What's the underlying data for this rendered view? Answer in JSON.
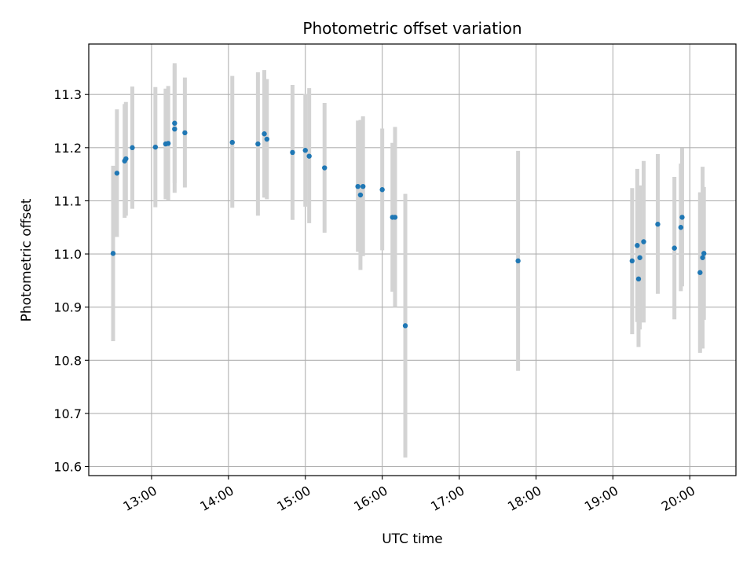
{
  "chart_data": {
    "type": "scatter",
    "title": "Photometric offset variation",
    "xlabel": "UTC time",
    "ylabel": "Photometric offset",
    "x_ticks": [
      "13:00",
      "14:00",
      "15:00",
      "16:00",
      "17:00",
      "18:00",
      "19:00",
      "20:00"
    ],
    "y_ticks": [
      "10.6",
      "10.7",
      "10.8",
      "10.9",
      "11.0",
      "11.1",
      "11.2",
      "11.3"
    ],
    "xlim": [
      "12:11",
      "20:36"
    ],
    "ylim": [
      10.583,
      11.395
    ],
    "grid": true,
    "colors": {
      "point": "#1f77b4",
      "errorbar": "#d3d3d3",
      "grid": "#b0b0b0"
    },
    "points": [
      {
        "x": "12:30",
        "y": 11.001,
        "low": 10.836,
        "high": 11.166
      },
      {
        "x": "12:33",
        "y": 11.152,
        "low": 11.032,
        "high": 11.272
      },
      {
        "x": "12:39",
        "y": 11.175,
        "low": 11.068,
        "high": 11.282
      },
      {
        "x": "12:40",
        "y": 11.179,
        "low": 11.072,
        "high": 11.286
      },
      {
        "x": "12:45",
        "y": 11.2,
        "low": 11.085,
        "high": 11.315
      },
      {
        "x": "13:03",
        "y": 11.201,
        "low": 11.088,
        "high": 11.314
      },
      {
        "x": "13:11",
        "y": 11.207,
        "low": 11.103,
        "high": 11.311
      },
      {
        "x": "13:13",
        "y": 11.208,
        "low": 11.1,
        "high": 11.316
      },
      {
        "x": "13:18",
        "y": 11.246,
        "low": 11.133,
        "high": 11.359
      },
      {
        "x": "13:18",
        "y": 11.235,
        "low": 11.115,
        "high": 11.355
      },
      {
        "x": "13:26",
        "y": 11.228,
        "low": 11.125,
        "high": 11.332
      },
      {
        "x": "14:03",
        "y": 11.21,
        "low": 11.087,
        "high": 11.335
      },
      {
        "x": "14:23",
        "y": 11.207,
        "low": 11.072,
        "high": 11.342
      },
      {
        "x": "14:28",
        "y": 11.226,
        "low": 11.106,
        "high": 11.346
      },
      {
        "x": "14:30",
        "y": 11.216,
        "low": 11.103,
        "high": 11.329
      },
      {
        "x": "14:50",
        "y": 11.191,
        "low": 11.064,
        "high": 11.318
      },
      {
        "x": "15:00",
        "y": 11.195,
        "low": 11.089,
        "high": 11.301
      },
      {
        "x": "15:03",
        "y": 11.184,
        "low": 11.058,
        "high": 11.312
      },
      {
        "x": "15:15",
        "y": 11.162,
        "low": 11.04,
        "high": 11.284
      },
      {
        "x": "15:41",
        "y": 11.127,
        "low": 11.004,
        "high": 11.251
      },
      {
        "x": "15:43",
        "y": 11.111,
        "low": 10.97,
        "high": 11.252
      },
      {
        "x": "15:45",
        "y": 11.127,
        "low": 10.996,
        "high": 11.259
      },
      {
        "x": "16:00",
        "y": 11.121,
        "low": 11.007,
        "high": 11.236
      },
      {
        "x": "16:08",
        "y": 11.069,
        "low": 10.929,
        "high": 11.209
      },
      {
        "x": "16:10",
        "y": 11.069,
        "low": 10.9,
        "high": 11.239
      },
      {
        "x": "16:18",
        "y": 10.865,
        "low": 10.617,
        "high": 11.113
      },
      {
        "x": "17:46",
        "y": 10.987,
        "low": 10.78,
        "high": 11.194
      },
      {
        "x": "19:15",
        "y": 10.987,
        "low": 10.849,
        "high": 11.124
      },
      {
        "x": "19:19",
        "y": 11.016,
        "low": 10.872,
        "high": 11.16
      },
      {
        "x": "19:20",
        "y": 10.953,
        "low": 10.825,
        "high": 11.08
      },
      {
        "x": "19:21",
        "y": 10.993,
        "low": 10.858,
        "high": 11.129
      },
      {
        "x": "19:24",
        "y": 11.023,
        "low": 10.871,
        "high": 11.175
      },
      {
        "x": "19:35",
        "y": 11.056,
        "low": 10.925,
        "high": 11.188
      },
      {
        "x": "19:48",
        "y": 11.011,
        "low": 10.877,
        "high": 11.145
      },
      {
        "x": "19:53",
        "y": 11.05,
        "low": 10.93,
        "high": 11.17
      },
      {
        "x": "19:54",
        "y": 11.069,
        "low": 10.939,
        "high": 11.199
      },
      {
        "x": "20:08",
        "y": 10.965,
        "low": 10.814,
        "high": 11.116
      },
      {
        "x": "20:10",
        "y": 10.993,
        "low": 10.822,
        "high": 11.164
      },
      {
        "x": "20:11",
        "y": 11.001,
        "low": 10.876,
        "high": 11.126
      }
    ]
  }
}
